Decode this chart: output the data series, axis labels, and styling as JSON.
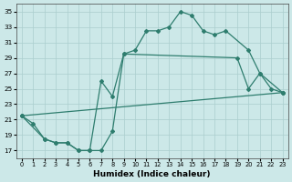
{
  "title": "",
  "xlabel": "Humidex (Indice chaleur)",
  "ylabel": "",
  "bg_color": "#cce8e8",
  "line_color": "#2e7d6e",
  "grid_color": "#aacece",
  "xlim": [
    -0.5,
    23.5
  ],
  "ylim": [
    16,
    36
  ],
  "xticks": [
    0,
    1,
    2,
    3,
    4,
    5,
    6,
    7,
    8,
    9,
    10,
    11,
    12,
    13,
    14,
    15,
    16,
    17,
    18,
    19,
    20,
    21,
    22,
    23
  ],
  "yticks": [
    17,
    19,
    21,
    23,
    25,
    27,
    29,
    31,
    33,
    35
  ],
  "line1_x": [
    0,
    1,
    2,
    3,
    4,
    5,
    6,
    7,
    8,
    9,
    10,
    11,
    12,
    13,
    14,
    15,
    16,
    17,
    18,
    20,
    21,
    22,
    23
  ],
  "line1_y": [
    21.5,
    20.5,
    18.5,
    18.0,
    18.0,
    17.0,
    17.0,
    26.0,
    24.0,
    29.5,
    30.0,
    32.5,
    32.5,
    33.0,
    35.0,
    34.5,
    32.5,
    32.0,
    32.5,
    30.0,
    27.0,
    25.0,
    24.5
  ],
  "line2_x": [
    0,
    2,
    3,
    4,
    5,
    6,
    7,
    8,
    9,
    19,
    20,
    21,
    23
  ],
  "line2_y": [
    21.5,
    18.5,
    18.0,
    18.0,
    17.0,
    17.0,
    17.0,
    19.5,
    29.5,
    29.0,
    25.0,
    27.0,
    24.5
  ],
  "line3_x": [
    0,
    23
  ],
  "line3_y": [
    21.5,
    24.5
  ]
}
